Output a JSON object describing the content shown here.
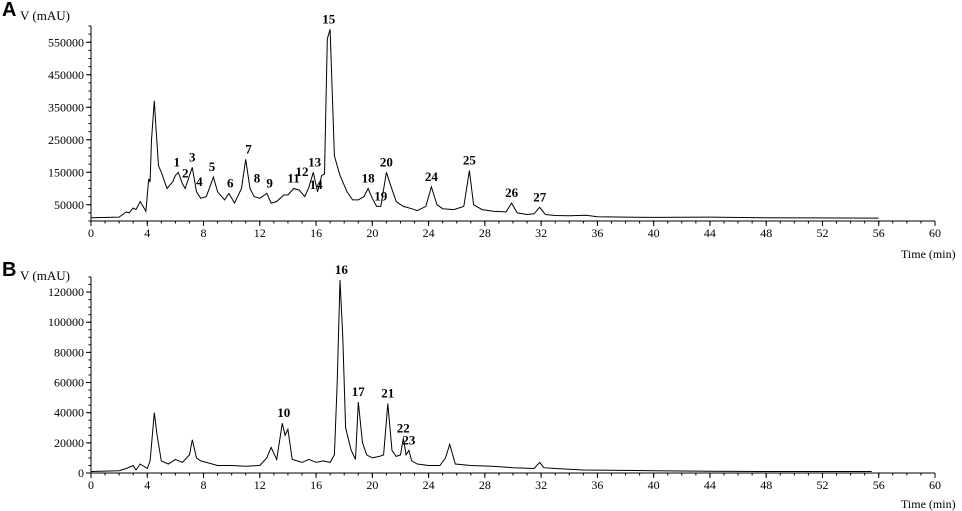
{
  "chart_data": [
    {
      "panel": "A",
      "type": "line",
      "ylabel": "V (mAU)",
      "xlabel": "Time (min)",
      "xlim": [
        0,
        60
      ],
      "ylim": [
        0,
        600000
      ],
      "x_ticks": [
        "0",
        "4",
        "8",
        "12",
        "16",
        "20",
        "24",
        "28",
        "32",
        "36",
        "40",
        "44",
        "48",
        "52",
        "56",
        "60"
      ],
      "y_ticks": [
        "50000",
        "150000",
        "250000",
        "350000",
        "450000",
        "550000"
      ],
      "x": [
        0,
        2,
        2.5,
        2.7,
        3,
        3.2,
        3.5,
        3.9,
        4.1,
        4.2,
        4.3,
        4.5,
        4.6,
        4.8,
        5.0,
        5.4,
        5.8,
        6.0,
        6.2,
        6.5,
        6.7,
        7.0,
        7.2,
        7.5,
        7.8,
        8.2,
        8.7,
        9.0,
        9.5,
        9.8,
        10.2,
        10.7,
        11.0,
        11.3,
        11.6,
        12.0,
        12.5,
        12.8,
        13.2,
        13.7,
        14.0,
        14.4,
        14.8,
        15.2,
        15.5,
        15.8,
        16.1,
        16.4,
        16.6,
        16.8,
        17.0,
        17.3,
        17.7,
        18.2,
        18.6,
        19.0,
        19.4,
        19.7,
        20.0,
        20.3,
        20.6,
        21.0,
        21.3,
        21.7,
        22.2,
        22.8,
        23.2,
        23.8,
        24.2,
        24.6,
        25.0,
        25.8,
        26.5,
        26.9,
        27.2,
        27.8,
        28.6,
        29.5,
        29.9,
        30.3,
        31.0,
        31.5,
        31.9,
        32.3,
        33.0,
        34.0,
        35.2,
        36.0,
        40.0,
        44.0,
        48.0,
        56.0
      ],
      "y": [
        10000,
        12000,
        28000,
        25000,
        40000,
        35000,
        60000,
        30000,
        130000,
        120000,
        250000,
        370000,
        300000,
        170000,
        150000,
        100000,
        120000,
        140000,
        150000,
        115000,
        100000,
        140000,
        165000,
        90000,
        70000,
        75000,
        135000,
        90000,
        65000,
        85000,
        55000,
        100000,
        190000,
        100000,
        75000,
        70000,
        85000,
        55000,
        60000,
        80000,
        80000,
        100000,
        95000,
        75000,
        105000,
        150000,
        90000,
        140000,
        145000,
        560000,
        590000,
        200000,
        140000,
        90000,
        65000,
        65000,
        75000,
        100000,
        70000,
        45000,
        45000,
        150000,
        110000,
        60000,
        45000,
        38000,
        32000,
        45000,
        105000,
        50000,
        38000,
        35000,
        45000,
        155000,
        50000,
        35000,
        30000,
        28000,
        55000,
        25000,
        20000,
        22000,
        42000,
        20000,
        17000,
        16000,
        18000,
        13000,
        11000,
        12000,
        10000,
        9000
      ],
      "peaks": [
        {
          "label": "1",
          "x": 6.1,
          "y": 150000
        },
        {
          "label": "2",
          "x": 6.7,
          "y": 115000
        },
        {
          "label": "3",
          "x": 7.2,
          "y": 165000
        },
        {
          "label": "4",
          "x": 7.7,
          "y": 90000
        },
        {
          "label": "5",
          "x": 8.6,
          "y": 135000
        },
        {
          "label": "6",
          "x": 9.9,
          "y": 85000
        },
        {
          "label": "7",
          "x": 11.2,
          "y": 190000
        },
        {
          "label": "8",
          "x": 11.8,
          "y": 100000
        },
        {
          "label": "9",
          "x": 12.7,
          "y": 85000
        },
        {
          "label": "11",
          "x": 14.4,
          "y": 100000
        },
        {
          "label": "12",
          "x": 15.0,
          "y": 120000
        },
        {
          "label": "13",
          "x": 15.9,
          "y": 150000
        },
        {
          "label": "14",
          "x": 16.0,
          "y": 80000
        },
        {
          "label": "15",
          "x": 16.9,
          "y": 590000
        },
        {
          "label": "18",
          "x": 19.7,
          "y": 100000
        },
        {
          "label": "19",
          "x": 20.6,
          "y": 45000
        },
        {
          "label": "20",
          "x": 21.0,
          "y": 150000
        },
        {
          "label": "24",
          "x": 24.2,
          "y": 105000
        },
        {
          "label": "25",
          "x": 26.9,
          "y": 155000
        },
        {
          "label": "26",
          "x": 29.9,
          "y": 55000
        },
        {
          "label": "27",
          "x": 31.9,
          "y": 42000
        }
      ]
    },
    {
      "panel": "B",
      "type": "line",
      "ylabel": "V (mAU)",
      "xlabel": "Time (min)",
      "xlim": [
        0,
        60
      ],
      "ylim": [
        0,
        130000
      ],
      "x_ticks": [
        "0",
        "4",
        "8",
        "12",
        "16",
        "20",
        "24",
        "28",
        "32",
        "36",
        "40",
        "44",
        "48",
        "52",
        "56",
        "60"
      ],
      "y_ticks": [
        "0",
        "20000",
        "40000",
        "60000",
        "80000",
        "100000",
        "120000"
      ],
      "x": [
        0,
        2.0,
        2.5,
        3.0,
        3.2,
        3.5,
        4.0,
        4.2,
        4.5,
        4.7,
        5.0,
        5.5,
        6.0,
        6.5,
        7.0,
        7.2,
        7.5,
        7.8,
        8.2,
        9.0,
        10.0,
        11.0,
        12.0,
        12.5,
        12.8,
        13.2,
        13.6,
        13.8,
        14.0,
        14.3,
        15.0,
        15.5,
        16.0,
        16.5,
        17.0,
        17.3,
        17.5,
        17.7,
        17.9,
        18.1,
        18.5,
        18.8,
        19.0,
        19.3,
        19.6,
        20.0,
        20.5,
        20.8,
        21.1,
        21.4,
        21.7,
        22.0,
        22.2,
        22.4,
        22.6,
        22.8,
        23.2,
        24.0,
        24.8,
        25.2,
        25.5,
        25.9,
        27.0,
        28.5,
        30.0,
        31.5,
        31.9,
        32.2,
        33.0,
        35.0,
        40.0,
        44.0,
        48.0,
        52.0,
        55.5
      ],
      "y": [
        1000,
        1500,
        3000,
        5000,
        2000,
        6000,
        3000,
        8000,
        40000,
        25000,
        8000,
        6000,
        9000,
        7000,
        12000,
        22000,
        10000,
        8000,
        7000,
        5000,
        5000,
        4500,
        5000,
        10000,
        17000,
        9000,
        33000,
        25000,
        29000,
        9000,
        7000,
        9000,
        7000,
        8000,
        7000,
        12000,
        60000,
        128000,
        90000,
        30000,
        15000,
        9000,
        47000,
        20000,
        12000,
        10000,
        11000,
        12000,
        46000,
        15000,
        11000,
        12000,
        23000,
        12000,
        15000,
        8000,
        6000,
        5000,
        5000,
        10000,
        19000,
        6000,
        5000,
        4500,
        3500,
        3000,
        7000,
        3500,
        3000,
        2000,
        1500,
        1200,
        1000,
        1000,
        1000
      ],
      "peaks": [
        {
          "label": "10",
          "x": 13.7,
          "y": 33000
        },
        {
          "label": "16",
          "x": 17.8,
          "y": 128000
        },
        {
          "label": "17",
          "x": 19.0,
          "y": 47000
        },
        {
          "label": "21",
          "x": 21.1,
          "y": 46000
        },
        {
          "label": "22",
          "x": 22.2,
          "y": 23000
        },
        {
          "label": "23",
          "x": 22.6,
          "y": 15000
        }
      ]
    }
  ],
  "panels": {
    "a": {
      "letter": "A",
      "ylabel": "V (mAU)",
      "xlabel": "Time (min)"
    },
    "b": {
      "letter": "B",
      "ylabel": "V (mAU)",
      "xlabel": "Time (min)"
    }
  }
}
